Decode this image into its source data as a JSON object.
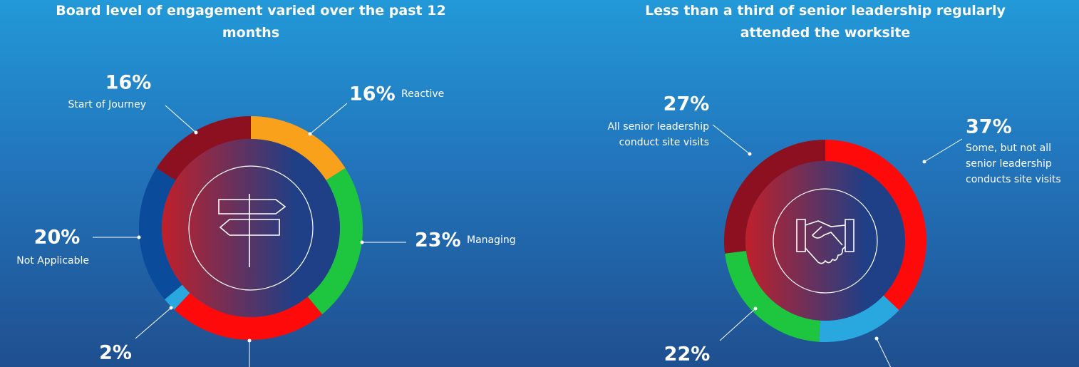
{
  "chart_data": [
    {
      "type": "donut",
      "title": "Board level of engagement varied over the past 12 months",
      "categories": [
        "Reactive",
        "Managing",
        null,
        null,
        "Not Applicable",
        "Start of Journey"
      ],
      "values": [
        16,
        23,
        23,
        2,
        20,
        16
      ],
      "value_labels": [
        "16%",
        "23%",
        null,
        "2%",
        "20%",
        "16%"
      ],
      "colors": [
        "#f9a11b",
        "#1ec640",
        "#ff0a0a",
        "#29a8e0",
        "#0a4b9c",
        "#8c1020"
      ]
    },
    {
      "type": "donut",
      "title": "Less than a third of senior leadership regularly attended the worksite",
      "categories": [
        "Some, but not all senior leadership conducts site visits",
        null,
        null,
        "All senior leadership conduct site visits"
      ],
      "values": [
        37,
        14,
        22,
        27
      ],
      "value_labels": [
        "37%",
        null,
        "22%",
        "27%"
      ],
      "colors": [
        "#ff0a0a",
        "#29a8e0",
        "#1ec640",
        "#8c1020"
      ]
    }
  ]
}
